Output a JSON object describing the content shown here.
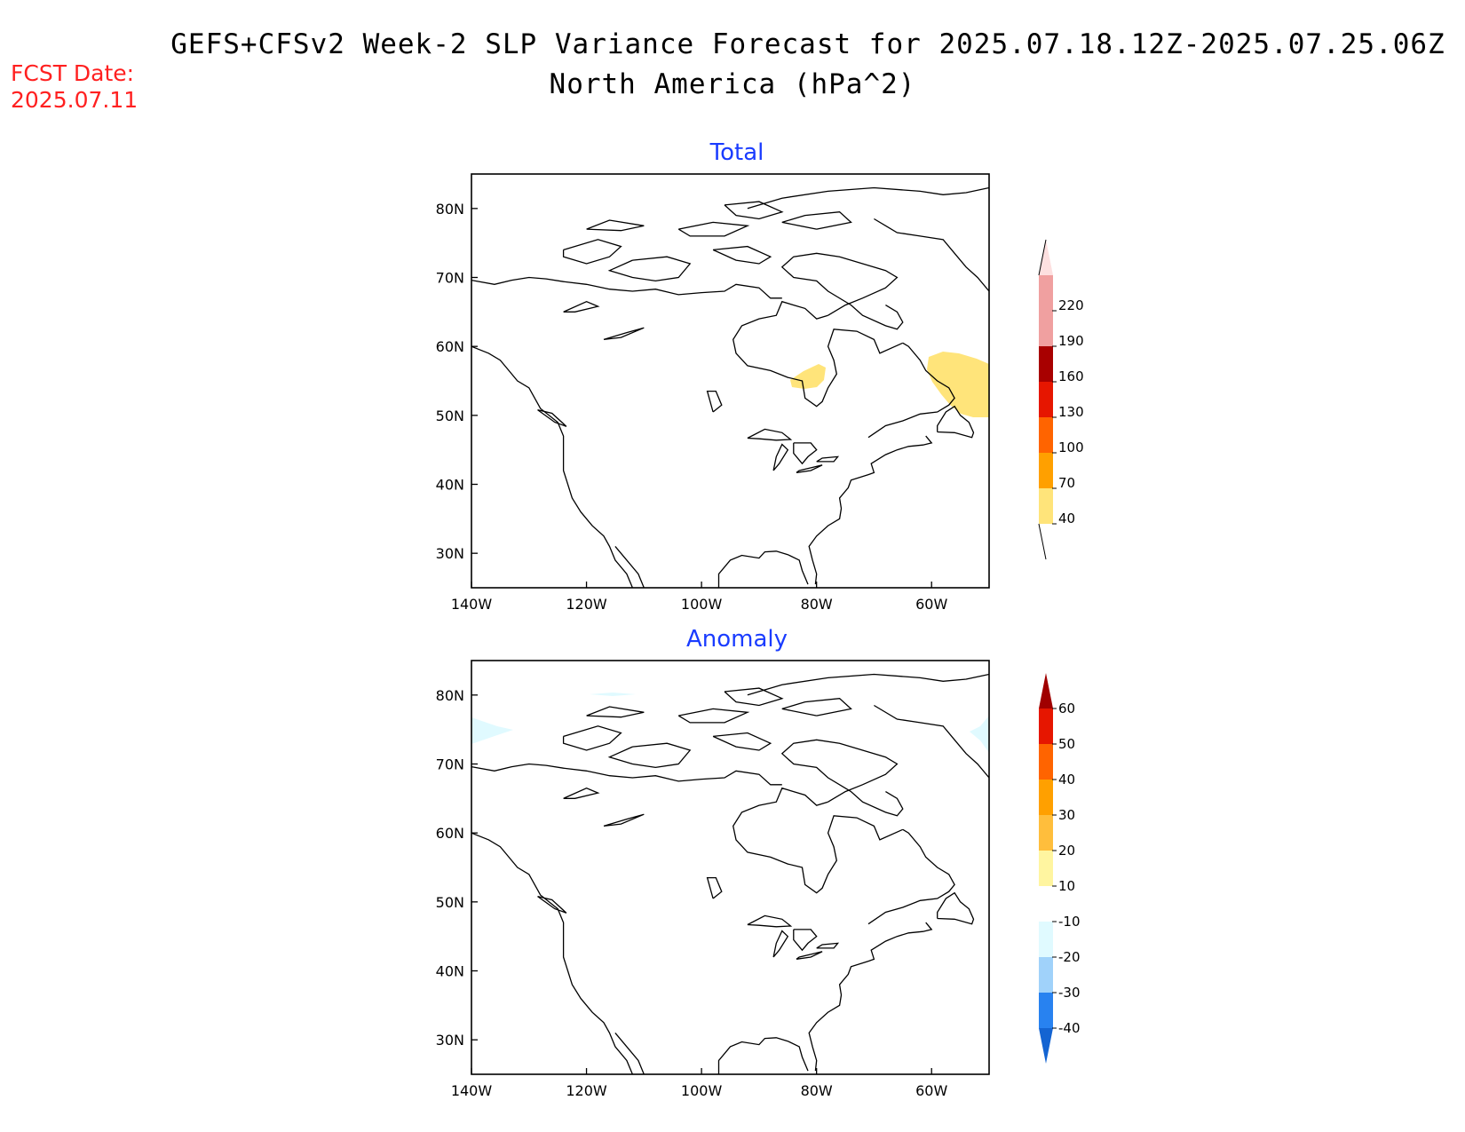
{
  "header": {
    "title": "GEFS+CFSv2 Week-2 SLP Variance Forecast for 2025.07.18.12Z-2025.07.25.06Z",
    "subtitle": "North America (hPa^2)",
    "fcst_label": "FCST Date:",
    "fcst_date": "2025.07.11"
  },
  "axes": {
    "lat_labels": [
      "80N",
      "70N",
      "60N",
      "50N",
      "40N",
      "30N"
    ],
    "lat_values": [
      80,
      70,
      60,
      50,
      40,
      30
    ],
    "lon_labels": [
      "140W",
      "120W",
      "100W",
      "80W",
      "60W"
    ],
    "lon_values": [
      -140,
      -120,
      -100,
      -80,
      -60
    ],
    "lat_range": [
      25,
      85
    ],
    "lon_range": [
      -140,
      -50
    ]
  },
  "panels": [
    {
      "title": "Total",
      "title_color": "#1a3cff",
      "colorbar": {
        "labels": [
          "40",
          "70",
          "100",
          "130",
          "160",
          "190",
          "220"
        ],
        "colors": [
          "#ffe47a",
          "#ffa000",
          "#ff6400",
          "#e61600",
          "#a80000",
          "#f0a0a0",
          "#fde0e0"
        ],
        "extend": "both-open"
      },
      "shaded_regions": [
        {
          "name": "hudson-bay-james-bay",
          "level": "40-70",
          "color": "#ffe47a"
        },
        {
          "name": "labrador-coast",
          "level": "40-70",
          "color": "#ffe47a"
        }
      ]
    },
    {
      "title": "Anomaly",
      "title_color": "#1a3cff",
      "colorbar": {
        "labels": [
          "60",
          "50",
          "40",
          "30",
          "20",
          "10",
          "-10",
          "-20",
          "-30",
          "-40"
        ],
        "colors": [
          "#a00000",
          "#e61600",
          "#ff6400",
          "#ffa000",
          "#ffbe3c",
          "#fff5a0",
          "#ffffff",
          "#e0faff",
          "#a0d2fa",
          "#2882f0",
          "#1464d2"
        ],
        "extend": "both"
      },
      "shaded_regions": [
        {
          "name": "western-arctic-edge",
          "level": "-20 to -10",
          "color": "#e0faff"
        },
        {
          "name": "eastern-arctic-edge",
          "level": "-20 to -10",
          "color": "#e0faff"
        },
        {
          "name": "arctic-north-strip",
          "level": "-20 to -10",
          "color": "#e0faff"
        }
      ]
    }
  ]
}
